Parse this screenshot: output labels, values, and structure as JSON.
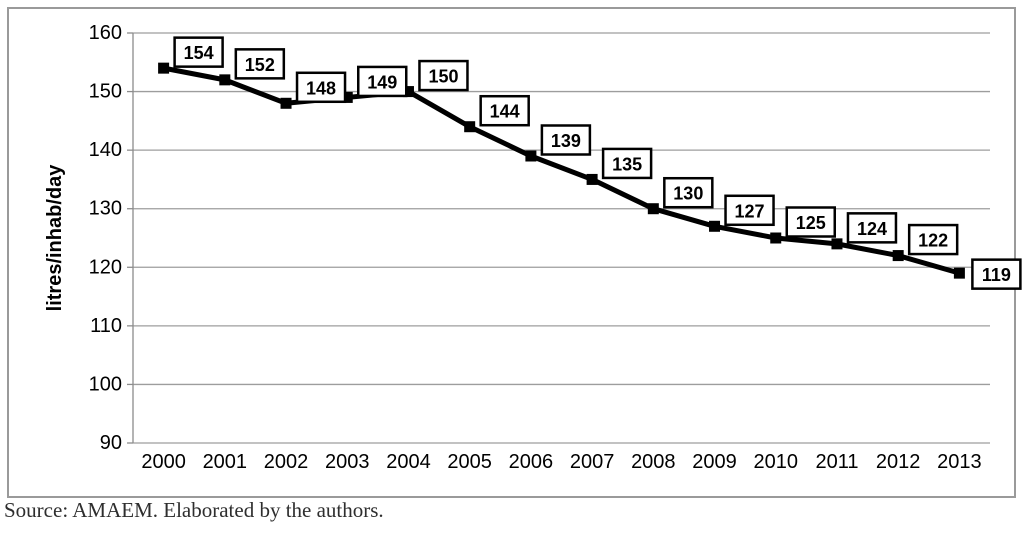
{
  "chart_data": {
    "type": "line",
    "title": "",
    "xlabel": "",
    "ylabel": "litres/inhab/day",
    "categories": [
      "2000",
      "2001",
      "2002",
      "2003",
      "2004",
      "2005",
      "2006",
      "2007",
      "2008",
      "2009",
      "2010",
      "2011",
      "2012",
      "2013"
    ],
    "series": [
      {
        "name": "litres/inhab/day",
        "values": [
          154,
          152,
          148,
          149,
          150,
          144,
          139,
          135,
          130,
          127,
          125,
          124,
          122,
          119
        ]
      }
    ],
    "data_labels": [
      154,
      152,
      148,
      149,
      150,
      144,
      139,
      135,
      130,
      127,
      125,
      124,
      122,
      119
    ],
    "ylim": [
      90,
      160
    ],
    "yticks": [
      90,
      100,
      110,
      120,
      130,
      140,
      150,
      160
    ],
    "grid": "horizontal",
    "legend": "none",
    "marker": "square"
  },
  "caption": {
    "source": "Source: AMAEM. Elaborated by the authors."
  },
  "colors": {
    "line": "#000000",
    "marker": "#000000",
    "gridline": "#9d9d9d",
    "axis": "#8c8c8c",
    "frame_border": "#9a9a9a",
    "label_box_fill": "#ffffff",
    "label_box_border": "#000000",
    "text": "#000000",
    "caption_text": "#2e2e2e"
  }
}
